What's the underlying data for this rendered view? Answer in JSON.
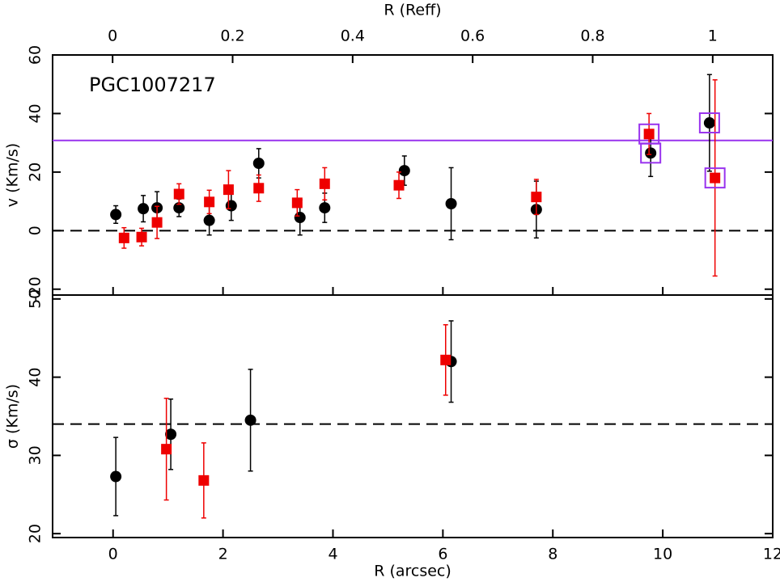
{
  "chart_data": [
    {
      "type": "scatter",
      "ylabel": "v (Km/s)",
      "annotation": "PGC1007217",
      "x2label": "R (Reff)",
      "x2lim": [
        -0.1,
        1.1
      ],
      "x2ticks": [
        0,
        0.2,
        0.4,
        0.6,
        0.8,
        1
      ],
      "xlim": [
        -1.1,
        12
      ],
      "ylim": [
        -22,
        60
      ],
      "yticks": [
        -20,
        0,
        20,
        40,
        60
      ],
      "hlines": [
        {
          "value": 0,
          "color": "#000000",
          "style": "dashed"
        },
        {
          "value": 30.8,
          "color": "#9933ee",
          "style": "solid"
        }
      ],
      "series": [
        {
          "marker": "circle",
          "color": "#000000",
          "x": [
            0.05,
            0.55,
            0.8,
            1.2,
            1.75,
            2.15,
            2.65,
            3.4,
            3.85,
            5.3,
            6.15,
            7.7,
            9.78,
            10.85
          ],
          "values": [
            5.5,
            7.5,
            7.8,
            7.8,
            3.5,
            8.5,
            23,
            4.5,
            7.8,
            20.5,
            9.2,
            7.2,
            26.5,
            36.8
          ],
          "errors": [
            3,
            4.5,
            5.5,
            3,
            5,
            5,
            5,
            6,
            5,
            5,
            12.3,
            9.7,
            8,
            16.5
          ]
        },
        {
          "marker": "square",
          "color": "#ee0000",
          "x": [
            0.2,
            0.52,
            0.8,
            1.2,
            1.75,
            2.1,
            2.65,
            3.35,
            3.85,
            5.2,
            7.7,
            9.75,
            10.95
          ],
          "values": [
            -2.5,
            -2.2,
            2.8,
            12.5,
            9.8,
            14,
            14.5,
            9.5,
            16,
            15.5,
            11.5,
            33,
            18
          ],
          "errors": [
            3.5,
            3,
            5.5,
            3.5,
            4,
            6.5,
            4.5,
            4.5,
            5.5,
            4.5,
            6,
            7,
            33.5
          ]
        },
        {
          "marker": "open-square",
          "color": "#9933ee",
          "x": [
            9.75,
            9.78,
            10.85,
            10.95
          ],
          "values": [
            33,
            26.5,
            36.8,
            18
          ]
        }
      ]
    },
    {
      "type": "scatter",
      "ylabel": "σ (Km/s)",
      "xlabel": "R (arcsec)",
      "xlim": [
        -1.1,
        12
      ],
      "xticks": [
        0,
        2,
        4,
        6,
        8,
        10,
        12
      ],
      "ylim": [
        19.5,
        50.5
      ],
      "yticks": [
        20,
        30,
        40,
        50
      ],
      "hlines": [
        {
          "value": 34,
          "color": "#000000",
          "style": "dashed"
        }
      ],
      "series": [
        {
          "marker": "circle",
          "color": "#000000",
          "x": [
            0.05,
            1.05,
            2.5,
            6.15
          ],
          "values": [
            27.3,
            32.7,
            34.5,
            42
          ],
          "errors": [
            5,
            4.5,
            6.5,
            5.2
          ]
        },
        {
          "marker": "square",
          "color": "#ee0000",
          "x": [
            0.97,
            1.65,
            6.05
          ],
          "values": [
            30.8,
            26.8,
            42.2
          ],
          "errors": [
            6.5,
            4.8,
            4.5
          ]
        }
      ]
    }
  ]
}
